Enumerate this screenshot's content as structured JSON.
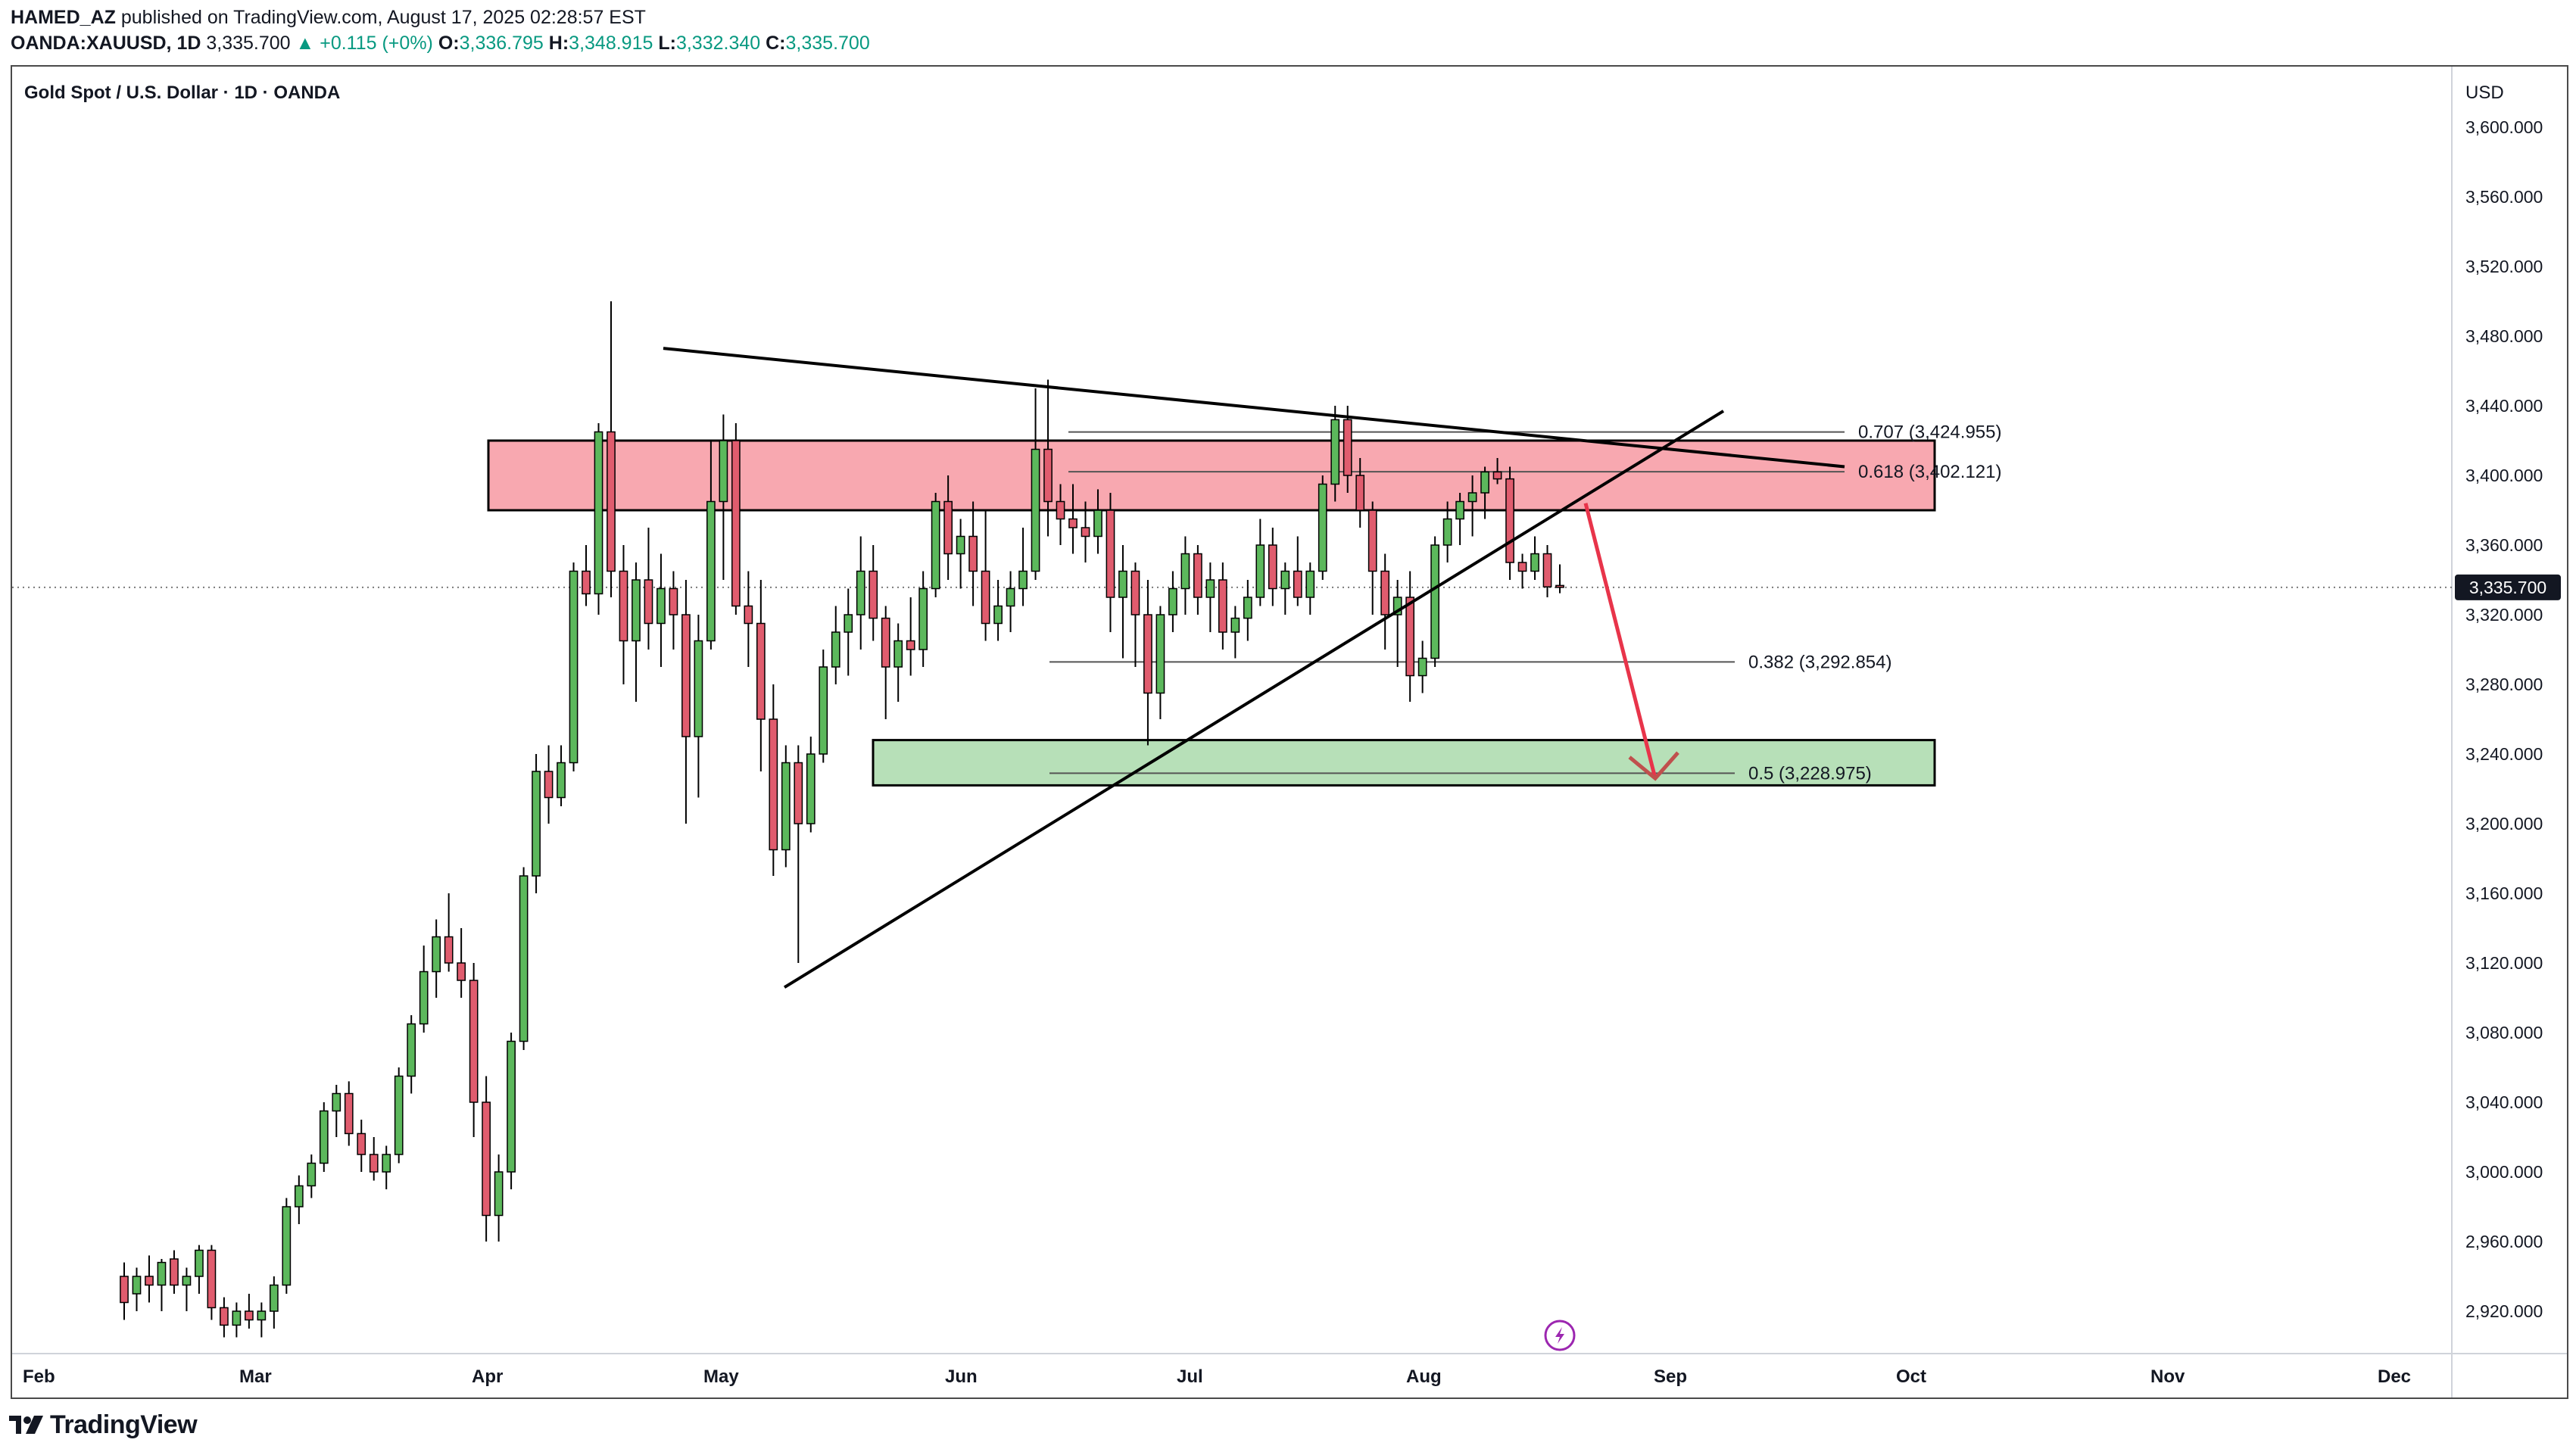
{
  "header": {
    "author": "HAMED_AZ",
    "published_text": " published on TradingView.com, August 17, 2025 02:28:57 EST",
    "symbol": "OANDA:XAUUSD, 1D",
    "last_price": "3,335.700",
    "change_arrow": "▲",
    "change": "+0.115 (+0%)",
    "o_label": "O:",
    "o_value": "3,336.795",
    "h_label": "H:",
    "h_value": "3,348.915",
    "l_label": "L:",
    "l_value": "3,332.340",
    "c_label": "C:",
    "c_value": "3,335.700"
  },
  "chart_title": "Gold Spot / U.S. Dollar · 1D · OANDA",
  "currency": "USD",
  "current_price_label": "3,335.700",
  "brand": "TradingView",
  "colors": {
    "up": "#5cb85c",
    "down": "#e05c6e",
    "resistance_zone": "#f8a8b0",
    "support_zone": "#b7e0b8",
    "projection_arrow": "#e8344a",
    "trendline": "#000000"
  },
  "chart_data": {
    "type": "candlestick",
    "x_axis": {
      "labels": [
        "Feb",
        "Mar",
        "Apr",
        "May",
        "Jun",
        "Jul",
        "Aug",
        "Sep",
        "Oct",
        "Nov",
        "Dec"
      ]
    },
    "y_axis": {
      "range": [
        2900,
        3620
      ],
      "ticks": [
        2920,
        2960,
        3000,
        3040,
        3080,
        3120,
        3160,
        3200,
        3240,
        3280,
        3320,
        3360,
        3400,
        3440,
        3480,
        3520,
        3560,
        3600
      ],
      "tick_labels": [
        "2,920.000",
        "2,960.000",
        "3,000.000",
        "3,040.000",
        "3,080.000",
        "3,120.000",
        "3,160.000",
        "3,200.000",
        "3,240.000",
        "3,280.000",
        "3,320.000",
        "3,360.000",
        "3,400.000",
        "3,440.000",
        "3,480.000",
        "3,520.000",
        "3,560.000",
        "3,600.000"
      ]
    },
    "candles_ohlc": [
      [
        2940,
        2948,
        2915,
        2925
      ],
      [
        2930,
        2945,
        2920,
        2940
      ],
      [
        2940,
        2952,
        2925,
        2935
      ],
      [
        2935,
        2950,
        2920,
        2948
      ],
      [
        2950,
        2955,
        2930,
        2935
      ],
      [
        2935,
        2945,
        2920,
        2940
      ],
      [
        2940,
        2958,
        2930,
        2955
      ],
      [
        2955,
        2958,
        2915,
        2922
      ],
      [
        2922,
        2928,
        2905,
        2912
      ],
      [
        2912,
        2925,
        2905,
        2920
      ],
      [
        2920,
        2930,
        2910,
        2915
      ],
      [
        2915,
        2925,
        2905,
        2920
      ],
      [
        2920,
        2940,
        2910,
        2935
      ],
      [
        2935,
        2985,
        2930,
        2980
      ],
      [
        2980,
        2998,
        2970,
        2992
      ],
      [
        2992,
        3010,
        2985,
        3005
      ],
      [
        3005,
        3040,
        3000,
        3035
      ],
      [
        3035,
        3050,
        3020,
        3045
      ],
      [
        3045,
        3052,
        3015,
        3022
      ],
      [
        3022,
        3030,
        3000,
        3010
      ],
      [
        3010,
        3020,
        2995,
        3000
      ],
      [
        3000,
        3015,
        2990,
        3010
      ],
      [
        3010,
        3060,
        3005,
        3055
      ],
      [
        3055,
        3090,
        3045,
        3085
      ],
      [
        3085,
        3130,
        3080,
        3115
      ],
      [
        3115,
        3145,
        3100,
        3135
      ],
      [
        3135,
        3160,
        3115,
        3120
      ],
      [
        3120,
        3140,
        3100,
        3110
      ],
      [
        3110,
        3120,
        3020,
        3040
      ],
      [
        3040,
        3055,
        2960,
        2975
      ],
      [
        2975,
        3010,
        2960,
        3000
      ],
      [
        3000,
        3080,
        2990,
        3075
      ],
      [
        3075,
        3175,
        3070,
        3170
      ],
      [
        3170,
        3240,
        3160,
        3230
      ],
      [
        3230,
        3245,
        3200,
        3215
      ],
      [
        3215,
        3245,
        3210,
        3235
      ],
      [
        3235,
        3350,
        3230,
        3345
      ],
      [
        3345,
        3360,
        3325,
        3332
      ],
      [
        3332,
        3430,
        3320,
        3425
      ],
      [
        3425,
        3500,
        3330,
        3345
      ],
      [
        3345,
        3360,
        3280,
        3305
      ],
      [
        3305,
        3350,
        3270,
        3340
      ],
      [
        3340,
        3370,
        3300,
        3315
      ],
      [
        3315,
        3355,
        3290,
        3335
      ],
      [
        3335,
        3345,
        3300,
        3320
      ],
      [
        3320,
        3340,
        3200,
        3250
      ],
      [
        3250,
        3320,
        3215,
        3305
      ],
      [
        3305,
        3420,
        3300,
        3385
      ],
      [
        3385,
        3435,
        3340,
        3420
      ],
      [
        3420,
        3430,
        3320,
        3325
      ],
      [
        3325,
        3345,
        3290,
        3315
      ],
      [
        3315,
        3340,
        3230,
        3260
      ],
      [
        3260,
        3280,
        3170,
        3185
      ],
      [
        3185,
        3245,
        3175,
        3235
      ],
      [
        3235,
        3245,
        3120,
        3200
      ],
      [
        3200,
        3250,
        3195,
        3240
      ],
      [
        3240,
        3300,
        3235,
        3290
      ],
      [
        3290,
        3325,
        3280,
        3310
      ],
      [
        3310,
        3335,
        3285,
        3320
      ],
      [
        3320,
        3365,
        3300,
        3345
      ],
      [
        3345,
        3360,
        3305,
        3318
      ],
      [
        3318,
        3325,
        3260,
        3290
      ],
      [
        3290,
        3315,
        3270,
        3305
      ],
      [
        3305,
        3330,
        3285,
        3300
      ],
      [
        3300,
        3345,
        3290,
        3335
      ],
      [
        3335,
        3390,
        3330,
        3385
      ],
      [
        3385,
        3400,
        3340,
        3355
      ],
      [
        3355,
        3375,
        3335,
        3365
      ],
      [
        3365,
        3385,
        3325,
        3345
      ],
      [
        3345,
        3380,
        3305,
        3315
      ],
      [
        3315,
        3340,
        3305,
        3325
      ],
      [
        3325,
        3345,
        3310,
        3335
      ],
      [
        3335,
        3370,
        3325,
        3345
      ],
      [
        3345,
        3450,
        3340,
        3415
      ],
      [
        3415,
        3455,
        3365,
        3385
      ],
      [
        3385,
        3395,
        3360,
        3375
      ],
      [
        3375,
        3395,
        3355,
        3370
      ],
      [
        3370,
        3385,
        3350,
        3365
      ],
      [
        3365,
        3392,
        3355,
        3380
      ],
      [
        3380,
        3390,
        3310,
        3330
      ],
      [
        3330,
        3360,
        3295,
        3345
      ],
      [
        3345,
        3350,
        3290,
        3320
      ],
      [
        3320,
        3340,
        3245,
        3275
      ],
      [
        3275,
        3325,
        3260,
        3320
      ],
      [
        3320,
        3345,
        3310,
        3335
      ],
      [
        3335,
        3365,
        3320,
        3355
      ],
      [
        3355,
        3360,
        3320,
        3330
      ],
      [
        3330,
        3350,
        3310,
        3340
      ],
      [
        3340,
        3350,
        3300,
        3310
      ],
      [
        3310,
        3325,
        3295,
        3318
      ],
      [
        3318,
        3340,
        3305,
        3330
      ],
      [
        3330,
        3375,
        3325,
        3360
      ],
      [
        3360,
        3370,
        3325,
        3335
      ],
      [
        3335,
        3350,
        3320,
        3345
      ],
      [
        3345,
        3365,
        3325,
        3330
      ],
      [
        3330,
        3350,
        3320,
        3345
      ],
      [
        3345,
        3400,
        3340,
        3395
      ],
      [
        3395,
        3440,
        3385,
        3432
      ],
      [
        3432,
        3440,
        3390,
        3400
      ],
      [
        3400,
        3410,
        3370,
        3380
      ],
      [
        3380,
        3385,
        3320,
        3345
      ],
      [
        3345,
        3355,
        3300,
        3320
      ],
      [
        3320,
        3340,
        3290,
        3330
      ],
      [
        3330,
        3345,
        3270,
        3285
      ],
      [
        3285,
        3305,
        3275,
        3295
      ],
      [
        3295,
        3365,
        3290,
        3360
      ],
      [
        3360,
        3385,
        3350,
        3375
      ],
      [
        3375,
        3390,
        3360,
        3385
      ],
      [
        3385,
        3400,
        3365,
        3390
      ],
      [
        3390,
        3405,
        3375,
        3402
      ],
      [
        3402,
        3410,
        3395,
        3398
      ],
      [
        3398,
        3405,
        3340,
        3350
      ],
      [
        3350,
        3355,
        3335,
        3345
      ],
      [
        3345,
        3365,
        3340,
        3355
      ],
      [
        3355,
        3360,
        3330,
        3336
      ],
      [
        3336.795,
        3348.915,
        3332.34,
        3335.7
      ]
    ],
    "zones": [
      {
        "name": "resistance",
        "from": 3380,
        "to": 3420
      },
      {
        "name": "support",
        "from": 3222,
        "to": 3248
      }
    ],
    "fib_levels": [
      {
        "label": "0.707 (3,424.955)",
        "value": 3424.955
      },
      {
        "label": "0.618 (3,402.121)",
        "value": 3402.121
      },
      {
        "label": "0.382 (3,292.854)",
        "value": 3292.854
      },
      {
        "label": "0.5 (3,228.975)",
        "value": 3228.975
      }
    ],
    "current_price": 3335.7
  }
}
